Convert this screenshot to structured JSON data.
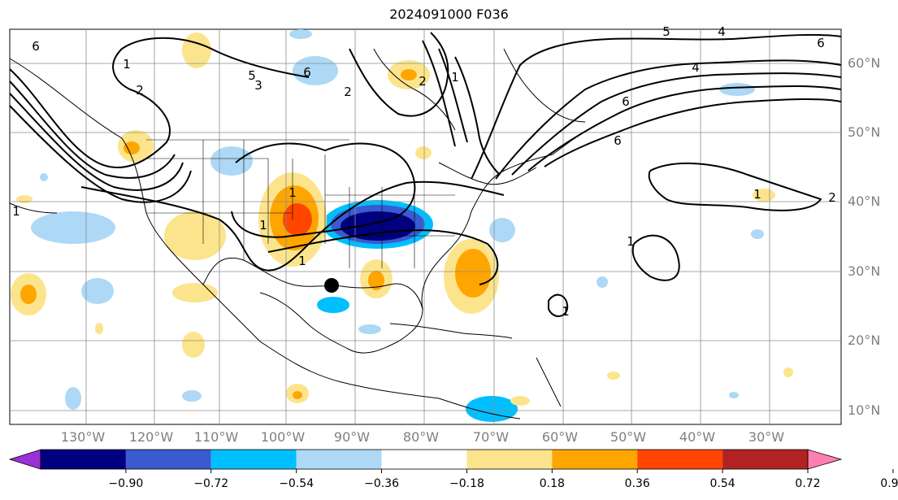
{
  "title": "2024091000 F036",
  "lon_labels": [
    "130°W",
    "120°W",
    "110°W",
    "100°W",
    "90°W",
    "80°W",
    "70°W",
    "60°W",
    "50°W",
    "40°W",
    "30°W"
  ],
  "lat_labels": [
    "60°N",
    "50°N",
    "40°N",
    "30°N",
    "20°N",
    "10°N"
  ],
  "colorbar": {
    "tick_labels": [
      "−0.90",
      "−0.72",
      "−0.54",
      "−0.36",
      "−0.18",
      "0.18",
      "0.36",
      "0.54",
      "0.72",
      "0.90"
    ],
    "colors": [
      "#9b30d8",
      "#000080",
      "#3a5ad0",
      "#00bfff",
      "#add8f6",
      "#ffffff",
      "#fce48c",
      "#ffa500",
      "#ff4500",
      "#b22222",
      "#ff80b0"
    ]
  },
  "contour_labels": [
    "6",
    "2",
    "5",
    "3",
    "6",
    "2",
    "1",
    "2",
    "1",
    "1",
    "1",
    "1",
    "5",
    "4",
    "4",
    "6",
    "6",
    "6",
    "1",
    "1",
    "1",
    "1",
    "2"
  ],
  "colors": {
    "grid": "#8c8c8c",
    "coast": "#000000",
    "contour": "#000000",
    "tick_label": "#7f7f7f"
  },
  "marker": "storm-center-dot"
}
